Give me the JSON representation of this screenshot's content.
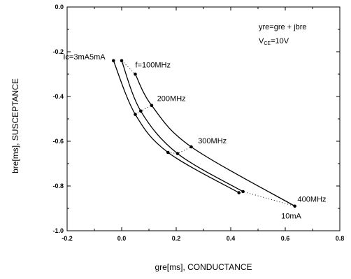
{
  "chart_data": {
    "type": "line",
    "xlabel": "gre[ms], CONDUCTANCE",
    "ylabel": "bre[ms], SUSCEPTANCE",
    "xlim": [
      -0.2,
      0.8
    ],
    "ylim": [
      -1.0,
      0.0
    ],
    "x_ticks": [
      "-0.2",
      "0.0",
      "0.2",
      "0.4",
      "0.6",
      "0.8"
    ],
    "y_ticks": [
      "0.0",
      "-0.2",
      "-0.4",
      "-0.6",
      "-0.8",
      "-1.0"
    ],
    "grid": false,
    "legend_text": {
      "line1": "yre=gre + jbre",
      "line2_main": "V",
      "line2_sub": "CE",
      "line2_rest": "=10V"
    },
    "series": [
      {
        "x": [
          -0.03,
          0.05,
          0.17,
          0.43
        ],
        "y": [
          -0.24,
          -0.48,
          -0.65,
          -0.83
        ]
      },
      {
        "x": [
          0.0,
          0.07,
          0.205,
          0.445
        ],
        "y": [
          -0.24,
          -0.465,
          -0.655,
          -0.825
        ]
      },
      {
        "x": [
          0.05,
          0.11,
          0.255,
          0.635
        ],
        "y": [
          -0.3,
          -0.44,
          -0.625,
          -0.89
        ]
      }
    ],
    "frequency_connectors": [
      {
        "x": [
          0.0,
          0.05
        ],
        "y": [
          -0.24,
          -0.3
        ]
      },
      {
        "x": [
          0.05,
          0.07,
          0.11
        ],
        "y": [
          -0.48,
          -0.465,
          -0.44
        ]
      },
      {
        "x": [
          0.17,
          0.205,
          0.255
        ],
        "y": [
          -0.65,
          -0.655,
          -0.625
        ]
      },
      {
        "x": [
          0.43,
          0.445,
          0.635
        ],
        "y": [
          -0.83,
          -0.825,
          -0.89
        ]
      }
    ],
    "annotations": [
      {
        "text": "Ic=3mA5mA",
        "x": -0.06,
        "y": -0.235,
        "anchor": "end"
      },
      {
        "text": "f=100MHz",
        "x": 0.05,
        "y": -0.27,
        "anchor": "start"
      },
      {
        "text": "200MHz",
        "x": 0.13,
        "y": -0.42,
        "anchor": "start"
      },
      {
        "text": "300MHz",
        "x": 0.28,
        "y": -0.61,
        "anchor": "start"
      },
      {
        "text": "400MHz",
        "x": 0.645,
        "y": -0.87,
        "anchor": "start"
      },
      {
        "text": "10mA",
        "x": 0.585,
        "y": -0.945,
        "anchor": "start"
      }
    ]
  }
}
